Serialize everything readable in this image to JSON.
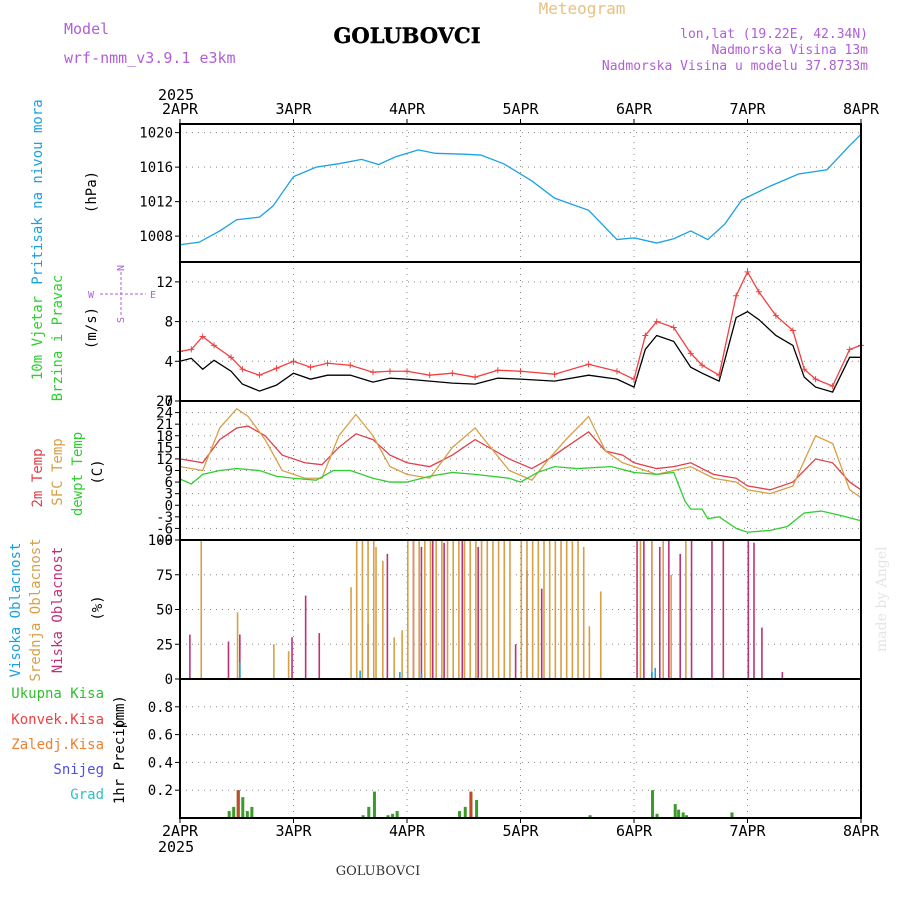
{
  "header": {
    "model_label": "Model",
    "model_name": "wrf-nmm_v3.9.1 e3km",
    "title": "GOLUBOVCI",
    "subtitle": "Meteogram",
    "lonlat": "lon,lat (19.22E, 42.34N)",
    "elevation": "Nadmorska Visina 13m",
    "model_elevation": "Nadmorska Visina u modelu 37.8733m",
    "footer_title": "GOLUBOVCI",
    "watermark": "made by Angel"
  },
  "colors": {
    "purple": "#b05ed8",
    "pressure": "#1ba1e2",
    "temp2m": "#e0404a",
    "sfctemp": "#d8a046",
    "dewpt": "#2fcf2f",
    "high_cloud": "#1ba1e2",
    "mid_cloud": "#d8a046",
    "low_cloud": "#c0307a",
    "total_precip": "#2fbf2f",
    "conv_precip": "#f04040",
    "frozen_precip": "#f08030",
    "snow": "#5050e0",
    "hail": "#30c0c0"
  },
  "chart_data": {
    "x_axis": {
      "year": "2025",
      "ticks": [
        "2APR",
        "3APR",
        "4APR",
        "5APR",
        "6APR",
        "7APR",
        "8APR"
      ],
      "range_days": [
        0,
        6
      ]
    },
    "panels": [
      {
        "id": "pressure",
        "type": "line",
        "ylabel": "Pritisak na nivou mora",
        "unit": "(hPa)",
        "yrange": [
          1005,
          1021
        ],
        "yticks": [
          1008,
          1012,
          1016,
          1020
        ],
        "series": [
          {
            "name": "Pritisak na nivou mora",
            "x": [
              0,
              0.17,
              0.35,
              0.5,
              0.7,
              0.82,
              1.0,
              1.2,
              1.4,
              1.6,
              1.75,
              1.9,
              2.1,
              2.25,
              2.5,
              2.65,
              2.85,
              3.1,
              3.3,
              3.6,
              3.85,
              4.0,
              4.2,
              4.35,
              4.5,
              4.65,
              4.8,
              4.95,
              5.2,
              5.45,
              5.7,
              5.9,
              6.0
            ],
            "y": [
              1007,
              1007.3,
              1008.6,
              1009.9,
              1010.2,
              1011.5,
              1014.9,
              1016.0,
              1016.4,
              1016.9,
              1016.3,
              1017.2,
              1018.0,
              1017.6,
              1017.5,
              1017.4,
              1016.4,
              1014.4,
              1012.4,
              1011.0,
              1007.6,
              1007.8,
              1007.2,
              1007.7,
              1008.6,
              1007.6,
              1009.4,
              1012.2,
              1013.8,
              1015.2,
              1015.7,
              1018.5,
              1019.8
            ]
          }
        ]
      },
      {
        "id": "wind",
        "type": "line",
        "ylabel": "10m Vjetar Brzina i Pravac",
        "unit": "(m/s)",
        "compass": {
          "n": "N",
          "s": "S",
          "e": "E",
          "w": "W"
        },
        "yrange": [
          0,
          14
        ],
        "yticks": [
          0,
          4,
          8,
          12
        ],
        "series": [
          {
            "name": "speed",
            "color": "#000000",
            "x": [
              0,
              0.1,
              0.2,
              0.3,
              0.45,
              0.55,
              0.7,
              0.85,
              1.0,
              1.15,
              1.3,
              1.5,
              1.7,
              1.85,
              2.0,
              2.2,
              2.4,
              2.6,
              2.8,
              3.0,
              3.3,
              3.6,
              3.85,
              4.0,
              4.1,
              4.2,
              4.35,
              4.5,
              4.6,
              4.75,
              4.9,
              5.0,
              5.1,
              5.25,
              5.4,
              5.5,
              5.6,
              5.75,
              5.9,
              6.0
            ],
            "y": [
              4,
              4.3,
              3.2,
              4.1,
              3.0,
              1.7,
              1.0,
              1.6,
              2.8,
              2.2,
              2.6,
              2.6,
              1.9,
              2.3,
              2.2,
              2.0,
              1.8,
              1.7,
              2.3,
              2.2,
              2.0,
              2.6,
              2.2,
              1.4,
              5.2,
              6.6,
              6.0,
              3.4,
              2.8,
              2.0,
              8.4,
              9.0,
              8.2,
              6.6,
              5.6,
              2.4,
              1.4,
              0.9,
              4.4,
              4.4
            ]
          },
          {
            "name": "gust",
            "color": "#f04040",
            "x": [
              0,
              0.1,
              0.2,
              0.3,
              0.45,
              0.55,
              0.7,
              0.85,
              1.0,
              1.15,
              1.3,
              1.5,
              1.7,
              1.85,
              2.0,
              2.2,
              2.4,
              2.6,
              2.8,
              3.0,
              3.3,
              3.6,
              3.85,
              4.0,
              4.1,
              4.2,
              4.35,
              4.5,
              4.6,
              4.75,
              4.9,
              5.0,
              5.1,
              5.25,
              5.4,
              5.5,
              5.6,
              5.75,
              5.9,
              6.0
            ],
            "y": [
              5,
              5.2,
              6.5,
              5.6,
              4.4,
              3.2,
              2.6,
              3.3,
              4.0,
              3.4,
              3.8,
              3.6,
              2.9,
              3.0,
              3.0,
              2.6,
              2.8,
              2.4,
              3.1,
              3.0,
              2.7,
              3.7,
              3.0,
              2.2,
              6.6,
              8.0,
              7.4,
              4.8,
              3.6,
              2.6,
              10.6,
              13.0,
              11.0,
              8.6,
              7.1,
              3.2,
              2.2,
              1.5,
              5.2,
              5.6
            ]
          }
        ]
      },
      {
        "id": "temperature",
        "type": "line",
        "ylabels": [
          "2m Temp",
          "SFC Temp",
          "dewpt Temp"
        ],
        "unit": "(C)",
        "yrange": [
          -9,
          27
        ],
        "yticks": [
          -9,
          -6,
          -3,
          0,
          3,
          6,
          9,
          12,
          15,
          18,
          21,
          24,
          27
        ],
        "series": [
          {
            "name": "2m Temp",
            "x": [
              0,
              0.2,
              0.35,
              0.5,
              0.6,
              0.75,
              0.9,
              1.1,
              1.25,
              1.4,
              1.55,
              1.7,
              1.85,
              2.0,
              2.2,
              2.4,
              2.6,
              2.9,
              3.1,
              3.25,
              3.4,
              3.6,
              3.75,
              3.9,
              4.0,
              4.2,
              4.35,
              4.5,
              4.7,
              4.9,
              5.0,
              5.2,
              5.4,
              5.6,
              5.75,
              5.9,
              6.0
            ],
            "y": [
              12,
              11,
              17,
              20,
              20.5,
              18,
              13,
              11,
              10.5,
              15,
              18.5,
              17,
              13,
              11,
              10,
              13,
              17,
              12,
              9.5,
              12,
              15,
              19,
              14,
              13,
              11,
              9.5,
              10,
              11,
              8,
              7,
              5,
              4,
              6,
              12,
              11,
              6,
              4
            ]
          },
          {
            "name": "SFC Temp",
            "x": [
              0,
              0.2,
              0.35,
              0.5,
              0.6,
              0.75,
              0.9,
              1.1,
              1.25,
              1.4,
              1.55,
              1.7,
              1.85,
              2.0,
              2.2,
              2.4,
              2.6,
              2.9,
              3.1,
              3.25,
              3.4,
              3.6,
              3.75,
              3.9,
              4.0,
              4.2,
              4.35,
              4.5,
              4.7,
              4.9,
              5.0,
              5.2,
              5.4,
              5.6,
              5.75,
              5.9,
              6.0
            ],
            "y": [
              10,
              9,
              20,
              25,
              23,
              17,
              9,
              7,
              7,
              18,
              23.5,
              18,
              10,
              8,
              7,
              15,
              20,
              9,
              6.5,
              12,
              17,
              23,
              14,
              11,
              10,
              8,
              9,
              10,
              7,
              6,
              4,
              3,
              5,
              18,
              16,
              4,
              2
            ]
          },
          {
            "name": "dewpt Temp",
            "x": [
              0,
              0.1,
              0.2,
              0.35,
              0.5,
              0.7,
              0.85,
              1.0,
              1.2,
              1.35,
              1.5,
              1.7,
              1.85,
              2.0,
              2.2,
              2.4,
              2.6,
              2.9,
              3.0,
              3.15,
              3.3,
              3.5,
              3.8,
              4.0,
              4.2,
              4.35,
              4.45,
              4.5,
              4.6,
              4.65,
              4.75,
              4.9,
              5.0,
              5.2,
              5.35,
              5.5,
              5.65,
              5.8,
              6.0
            ],
            "y": [
              6.8,
              5.5,
              8,
              9,
              9.5,
              9,
              7.5,
              7,
              6.5,
              9,
              9,
              7,
              6,
              6,
              7.5,
              8.5,
              8,
              7,
              6,
              8.5,
              10,
              9.5,
              10,
              8.5,
              8,
              8.5,
              1,
              -1,
              -1,
              -3.5,
              -3,
              -6,
              -7,
              -6.5,
              -5.5,
              -2,
              -1.5,
              -2.5,
              -4
            ]
          }
        ]
      },
      {
        "id": "clouds",
        "type": "bar",
        "ylabels": [
          "Visoka Oblacnost",
          "Srednja Oblacnost",
          "Niska Oblacnost"
        ],
        "unit": "(%)",
        "yrange": [
          0,
          100
        ],
        "yticks": [
          0,
          25,
          50,
          75,
          100
        ],
        "series": [
          {
            "name": "Niska Oblacnost",
            "x": [
              0.08,
              0.42,
              0.52,
              0.98,
              1.1,
              1.22,
              1.65,
              1.82,
              2.05,
              2.12,
              2.22,
              2.32,
              2.48,
              2.62,
              2.95,
              3.05,
              3.18,
              4.02,
              4.08,
              4.15,
              4.22,
              4.3,
              4.4,
              4.5,
              4.68,
              4.78,
              5.0,
              5.05,
              5.12,
              5.3
            ],
            "y": [
              32,
              27,
              32,
              30,
              60,
              33,
              40,
              90,
              100,
              95,
              100,
              98,
              100,
              95,
              25,
              78,
              65,
              100,
              100,
              100,
              95,
              100,
              90,
              100,
              100,
              100,
              100,
              98,
              37,
              5
            ]
          },
          {
            "name": "Srednja Oblacnost",
            "x": [
              0.18,
              0.5,
              0.82,
              0.95,
              1.5,
              1.55,
              1.6,
              1.65,
              1.7,
              1.72,
              1.78,
              1.88,
              1.95,
              2.0,
              2.05,
              2.1,
              2.15,
              2.2,
              2.25,
              2.3,
              2.35,
              2.4,
              2.45,
              2.5,
              2.55,
              2.6,
              2.65,
              2.7,
              2.75,
              2.8,
              2.85,
              2.9,
              3.0,
              3.05,
              3.1,
              3.15,
              3.2,
              3.25,
              3.3,
              3.35,
              3.4,
              3.45,
              3.5,
              3.55,
              3.6,
              3.7,
              4.05,
              4.15,
              4.25,
              4.32,
              4.45
            ],
            "y": [
              100,
              48,
              25,
              20,
              66,
              100,
              100,
              100,
              100,
              95,
              85,
              30,
              35,
              100,
              100,
              100,
              100,
              100,
              100,
              100,
              100,
              100,
              100,
              100,
              100,
              100,
              100,
              100,
              100,
              100,
              100,
              100,
              100,
              100,
              100,
              100,
              100,
              100,
              100,
              100,
              100,
              100,
              100,
              95,
              38,
              63,
              100,
              100,
              100,
              75,
              100
            ]
          },
          {
            "name": "Visoka Oblacnost",
            "x": [
              0.52,
              1.58,
              1.93,
              2.12,
              4.15,
              4.18
            ],
            "y": [
              12,
              6,
              5,
              4,
              5,
              8
            ]
          }
        ]
      },
      {
        "id": "precip",
        "type": "bar",
        "ylabels": [
          "Ukupna Kisa",
          "Konvek.Kisa",
          "Zaledj.Kisa",
          "Snijeg",
          "Grad"
        ],
        "ylabel": "1hr Precip",
        "unit": "(mm)",
        "yrange": [
          0,
          1.0
        ],
        "yticks": [
          0.2,
          0.4,
          0.6,
          0.8
        ],
        "series": [
          {
            "name": "Ukupna Kisa",
            "x": [
              0.42,
              0.46,
              0.5,
              0.54,
              0.58,
              0.62,
              1.6,
              1.65,
              1.7,
              1.82,
              1.86,
              1.9,
              2.45,
              2.5,
              2.55,
              2.6,
              3.6,
              4.15,
              4.19,
              4.35,
              4.38,
              4.42,
              4.45,
              4.85
            ],
            "y": [
              0.05,
              0.08,
              0.2,
              0.15,
              0.05,
              0.08,
              0.02,
              0.08,
              0.19,
              0.02,
              0.03,
              0.05,
              0.05,
              0.08,
              0.18,
              0.13,
              0.02,
              0.2,
              0.03,
              0.1,
              0.06,
              0.04,
              0.02,
              0.04
            ]
          },
          {
            "name": "Konvek.Kisa",
            "x": [
              0.5,
              2.55
            ],
            "y": [
              0.2,
              0.19
            ]
          }
        ]
      }
    ]
  }
}
